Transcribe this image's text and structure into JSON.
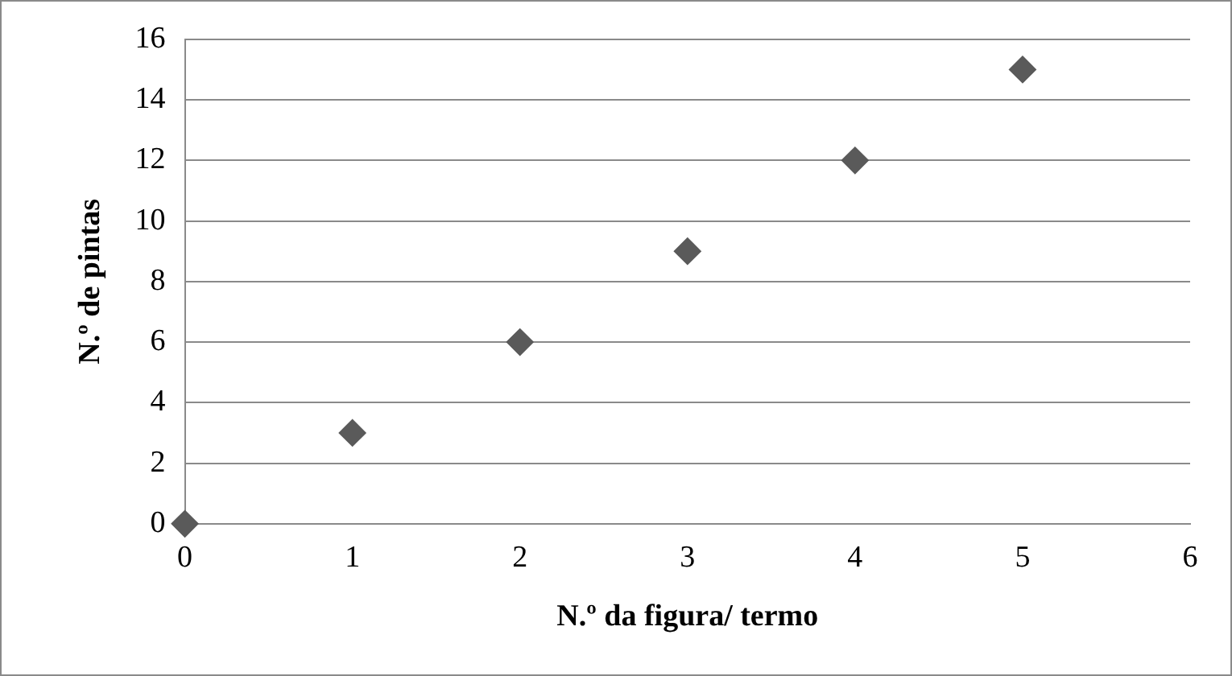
{
  "chart_data": {
    "type": "scatter",
    "xlabel": "N.º da figura/ termo",
    "ylabel": "N.º de pintas",
    "x": [
      0,
      1,
      2,
      3,
      4,
      5
    ],
    "values": [
      0,
      3,
      6,
      9,
      12,
      15
    ],
    "color": "#5a5a5a",
    "marker": "diamond",
    "xlim": [
      0,
      6
    ],
    "xticks": [
      0,
      1,
      2,
      3,
      4,
      5,
      6
    ],
    "ylim": [
      0,
      16
    ],
    "yticks": [
      0,
      2,
      4,
      6,
      8,
      10,
      12,
      14,
      16
    ],
    "grid": "y"
  }
}
